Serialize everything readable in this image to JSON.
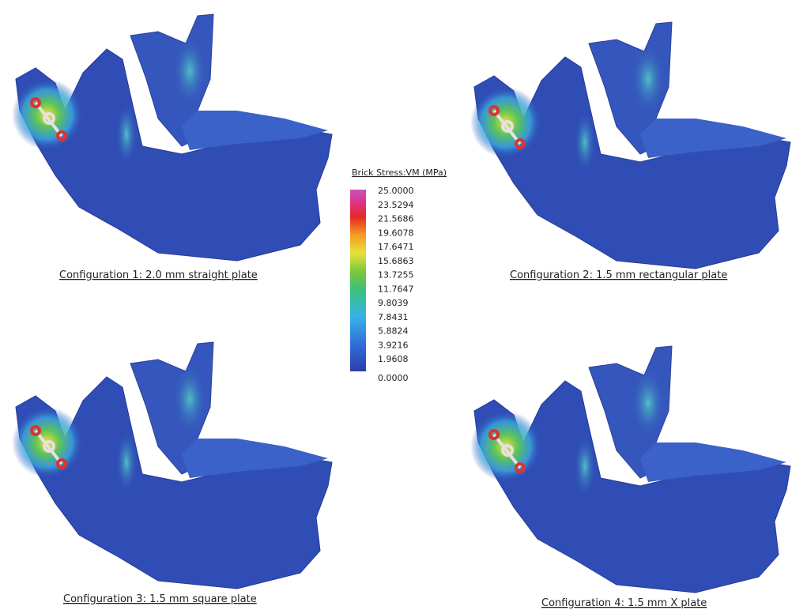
{
  "legend": {
    "title": "Brick Stress:VM  (MPa)",
    "labels": [
      "25.0000",
      "23.5294",
      "21.5686",
      "19.6078",
      "17.6471",
      "15.6863",
      "13.7255",
      "11.7647",
      "9.8039",
      "7.8431",
      "5.8824",
      "3.9216",
      "1.9608",
      "0.0000"
    ]
  },
  "panels": [
    {
      "caption": "Configuration 1: 2.0 mm straight plate"
    },
    {
      "caption": "Configuration 2: 1.5 mm rectangular plate"
    },
    {
      "caption": "Configuration 3: 1.5 mm square plate"
    },
    {
      "caption": "Configuration 4: 1.5 mm X plate"
    }
  ]
}
